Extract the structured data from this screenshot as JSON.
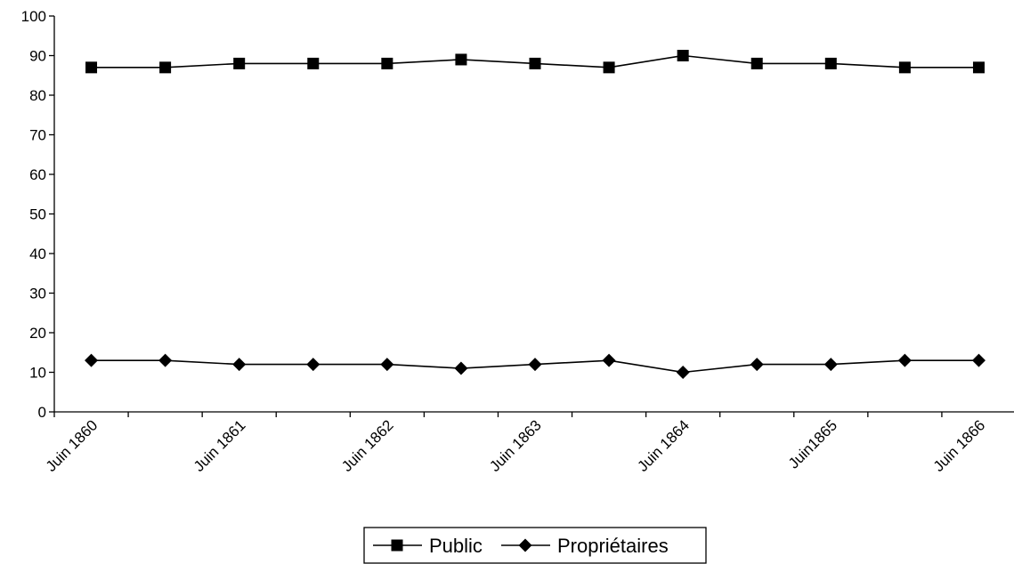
{
  "chart_data": {
    "type": "line",
    "title": "",
    "xlabel": "",
    "ylabel": "",
    "ylim": [
      0,
      100
    ],
    "yticks": [
      0,
      10,
      20,
      30,
      40,
      50,
      60,
      70,
      80,
      90,
      100
    ],
    "x_tick_labels": [
      "Juin 1860",
      "Juin 1861",
      "Juin 1862",
      "Juin 1863",
      "Juin 1864",
      "Juin1865",
      "Juin 1866"
    ],
    "grid": false,
    "legend_position": "bottom",
    "series": [
      {
        "name": "Public",
        "marker": "square",
        "color": "#000000",
        "values": [
          87,
          87,
          88,
          88,
          88,
          89,
          88,
          87,
          90,
          88,
          88,
          87,
          87
        ]
      },
      {
        "name": "Propriétaires",
        "marker": "diamond",
        "color": "#000000",
        "values": [
          13,
          13,
          12,
          12,
          12,
          11,
          12,
          13,
          10,
          12,
          12,
          13,
          13
        ]
      }
    ]
  }
}
